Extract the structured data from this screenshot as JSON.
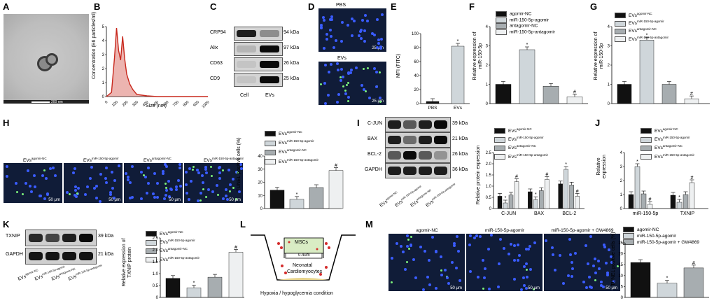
{
  "panel_labels": [
    "A",
    "B",
    "C",
    "D",
    "E",
    "F",
    "G",
    "H",
    "I",
    "J",
    "K",
    "L",
    "M"
  ],
  "colors": {
    "black": "#111111",
    "light_gray": "#cfd6da",
    "mid_gray": "#a7adb0",
    "very_light": "#eef0f1",
    "nta_line": "#c8281d"
  },
  "A": {
    "scale": "200 nm"
  },
  "B": {
    "ylabel": "Concentration (E6 particles/ml)",
    "xlabel": "Size (nm)",
    "yticks": [
      "0",
      "1",
      "2",
      "3",
      "4",
      "5"
    ],
    "xticks": [
      "0",
      "100",
      "200",
      "300",
      "400",
      "500",
      "600",
      "700",
      "800",
      "900",
      "1000"
    ]
  },
  "C": {
    "proteins": [
      "CRP94",
      "Alix",
      "CD63",
      "CD9"
    ],
    "kda": [
      "94 kDa",
      "97 kDa",
      "26 kDa",
      "25 kDa"
    ],
    "lanes": [
      "Cell",
      "EVs"
    ]
  },
  "D": {
    "top": "PBS",
    "bottom": "EVs",
    "scale": "25 μm"
  },
  "E": {
    "ylabel": "MFI (FITC)",
    "yticks": [
      "0",
      "20",
      "40",
      "60",
      "80",
      "100"
    ],
    "star": "*"
  },
  "F": {
    "ylabel1": "Relative expression of",
    "ylabel2": "miR-150-5p",
    "yticks": [
      "0",
      "1",
      "2",
      "3",
      "4"
    ],
    "legend": [
      "agomir-NC",
      "miR-150-5p-agomir",
      "antagomir-NC",
      "miR-150-5p-antagomir"
    ],
    "star": "*",
    "hash": "#"
  },
  "G": {
    "ylabel1": "Relative expression of",
    "ylabel2": "miR-150-5p",
    "yticks": [
      "0",
      "1",
      "2",
      "3",
      "4"
    ],
    "legend_main": "EVs",
    "legend_sup": [
      "agomir-NC",
      "miR-150-5p-agomir",
      "antagomir-NC",
      "miR-150-5p-antagomir"
    ],
    "star": "*",
    "hash": "#"
  },
  "H": {
    "images": [
      "EVs",
      "EVs",
      "EVs",
      "EVs"
    ],
    "image_sup": [
      "agomir-NC",
      "miR-150-5p-agomir",
      "antagomir-NC",
      "miR-150-5p-antagomir"
    ],
    "scale": "50 μm",
    "ylabel": "TUNEL positive cells (%)",
    "yticks": [
      "0",
      "10",
      "20",
      "30",
      "40"
    ],
    "legend_main": "EVs",
    "legend_sup": [
      "agomir-NC",
      "miR-150-5p-agomir",
      "antagomir-NC",
      "miR-150-5p-antagomir"
    ],
    "star": "*",
    "hash": "#"
  },
  "I": {
    "proteins": [
      "C-JUN",
      "BAX",
      "BCL-2",
      "GAPDH"
    ],
    "kda": [
      "39 kDa",
      "21 kDa",
      "26 kDa",
      "36 kDa"
    ],
    "lane_main": "EVs",
    "lane_sup": [
      "agomir-NC",
      "miR-150-5p-agomir",
      "antagomir-NC",
      "miR-150-5p-antagomir"
    ],
    "ylabel": "Relative protein expression",
    "yticks": [
      "0",
      "0.5",
      "1.0",
      "1.5",
      "2.0",
      "2.5"
    ],
    "groups": [
      "C-JUN",
      "BAX",
      "BCL-2"
    ],
    "legend_main": "EVs",
    "legend_sup": [
      "agomir-NC",
      "miR-150-5p-agomir",
      "antagomir-NC",
      "miR-150-5p-antagomir"
    ],
    "star": "*",
    "hash": "#"
  },
  "J": {
    "ylabel1": "Relative",
    "ylabel2": "expression",
    "yticks": [
      "0",
      "1",
      "2",
      "3",
      "4"
    ],
    "groups": [
      "miR-150-5p",
      "TXNIP"
    ],
    "legend_main": "EVs",
    "legend_sup": [
      "agomir-NC",
      "miR-150-5p-agomir",
      "antagomir-NC",
      "miR-150-5p-antagomir"
    ],
    "star": "*",
    "hash": "#"
  },
  "K": {
    "proteins": [
      "TXNIP",
      "GAPDH"
    ],
    "kda": [
      "39 kDa",
      "21 kDa"
    ],
    "lane_main": "EVs",
    "lane_sup": [
      "agomir-NC",
      "miR-150-5p-agomir",
      "antagomir-NC",
      "miR-150-5p-antagomir"
    ],
    "ylabel1": "Relative expression of",
    "ylabel2": "TXNIP protein",
    "yticks": [
      "0",
      "0.5",
      "1.0",
      "1.5",
      "2.0",
      "2.5"
    ],
    "legend_main": "EVs",
    "legend_sup": [
      "agomir-NC",
      "miR-150-5p-agomir",
      "antagomir-NC",
      "miR-150-5p-antagomir"
    ],
    "star": "*",
    "hash": "#"
  },
  "L": {
    "msc": "MSCs",
    "membrane": "0.4um",
    "cardio1": "Neonatal",
    "cardio2": "Cardiomyocytes",
    "condition": "Hypoxia / hypoglycemia condition"
  },
  "M": {
    "images": [
      "agomir-NC",
      "miR-150-5p-agomir",
      "miR-150-5p-agomir + GW4869"
    ],
    "scale": "50 μm",
    "ylabel": "TUNEL positive cells (%)",
    "yticks": [
      "0",
      "5",
      "10",
      "15",
      "20",
      "25"
    ],
    "legend": [
      "agomir-NC",
      "miR-150-5p-agomir",
      "miR-150-5p-agomir + GW4869"
    ],
    "star": "*",
    "hash": "#"
  },
  "chart_data": [
    {
      "panel": "B",
      "type": "line",
      "x": [
        0,
        50,
        80,
        100,
        120,
        140,
        160,
        180,
        200,
        230,
        260,
        300,
        400,
        500,
        1000
      ],
      "y": [
        0,
        0.3,
        2.8,
        4.9,
        3.3,
        2.6,
        4.3,
        2.7,
        1.6,
        0.9,
        0.5,
        0.15,
        0.05,
        0,
        0
      ],
      "xlabel": "Size (nm)",
      "ylabel": "Concentration (E6 particles/ml)",
      "xlim": [
        0,
        1000
      ],
      "ylim": [
        0,
        5
      ]
    },
    {
      "panel": "E",
      "type": "bar",
      "categories": [
        "PBS",
        "EVs"
      ],
      "values": [
        3,
        82
      ],
      "ylabel": "MFI (FITC)",
      "ylim": [
        0,
        100
      ]
    },
    {
      "panel": "F",
      "type": "bar",
      "categories": [
        "agomir-NC",
        "miR-150-5p-agomir",
        "antagomir-NC",
        "miR-150-5p-antagomir"
      ],
      "values": [
        1.0,
        2.8,
        0.9,
        0.35
      ],
      "ylim": [
        0,
        4
      ]
    },
    {
      "panel": "G",
      "type": "bar",
      "categories": [
        "agomir-NC",
        "miR-150-5p-agomir",
        "antagomir-NC",
        "miR-150-5p-antagomir"
      ],
      "values": [
        1.0,
        3.3,
        1.0,
        0.25
      ],
      "ylim": [
        0,
        4
      ]
    },
    {
      "panel": "H",
      "type": "bar",
      "categories": [
        "agomir-NC",
        "miR-150-5p-agomir",
        "antagomir-NC",
        "miR-150-5p-antagomir"
      ],
      "values": [
        14,
        7,
        16,
        29
      ],
      "ylim": [
        0,
        40
      ]
    },
    {
      "panel": "I",
      "type": "bar",
      "categories": [
        "C-JUN",
        "BAX",
        "BCL-2"
      ],
      "series": [
        {
          "name": "agomir-NC",
          "values": [
            0.55,
            0.75,
            1.1
          ]
        },
        {
          "name": "miR-150-5p-agomir",
          "values": [
            0.25,
            0.4,
            1.75
          ]
        },
        {
          "name": "antagomir-NC",
          "values": [
            0.6,
            0.8,
            1.05
          ]
        },
        {
          "name": "miR-150-5p-antagomir",
          "values": [
            1.2,
            1.3,
            0.55
          ]
        }
      ],
      "ylim": [
        0,
        2.5
      ]
    },
    {
      "panel": "J",
      "type": "bar",
      "categories": [
        "miR-150-5p",
        "TXNIP"
      ],
      "series": [
        {
          "name": "agomir-NC",
          "values": [
            1.0,
            0.95
          ]
        },
        {
          "name": "miR-150-5p-agomir",
          "values": [
            3.0,
            0.45
          ]
        },
        {
          "name": "antagomir-NC",
          "values": [
            1.05,
            1.0
          ]
        },
        {
          "name": "miR-150-5p-antagomir",
          "values": [
            0.3,
            1.85
          ]
        }
      ],
      "ylim": [
        0,
        4
      ]
    },
    {
      "panel": "K",
      "type": "bar",
      "categories": [
        "agomir-NC",
        "miR-150-5p-agomir",
        "antagomir-NC",
        "miR-150-5p-antagomir"
      ],
      "values": [
        0.8,
        0.4,
        0.85,
        1.9
      ],
      "ylim": [
        0,
        2.5
      ]
    },
    {
      "panel": "M",
      "type": "bar",
      "categories": [
        "agomir-NC",
        "miR-150-5p-agomir",
        "miR-150-5p-agomir + GW4869"
      ],
      "values": [
        16,
        6.5,
        13.5
      ],
      "ylim": [
        0,
        25
      ]
    }
  ]
}
